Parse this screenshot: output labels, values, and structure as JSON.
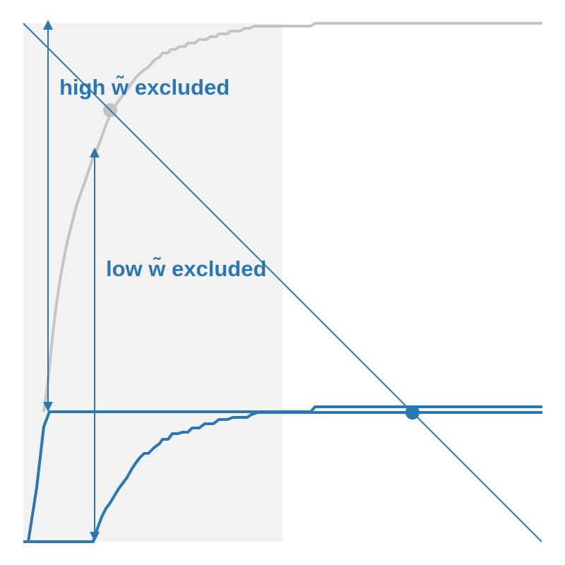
{
  "labels": {
    "high": "high w̃ excluded",
    "low": "low w̃ excluded"
  },
  "colors": {
    "blue": "#2a77b4",
    "gray_curve": "#c4c4c4",
    "shaded_region": "#f2f2f2",
    "background": "#ffffff"
  }
}
